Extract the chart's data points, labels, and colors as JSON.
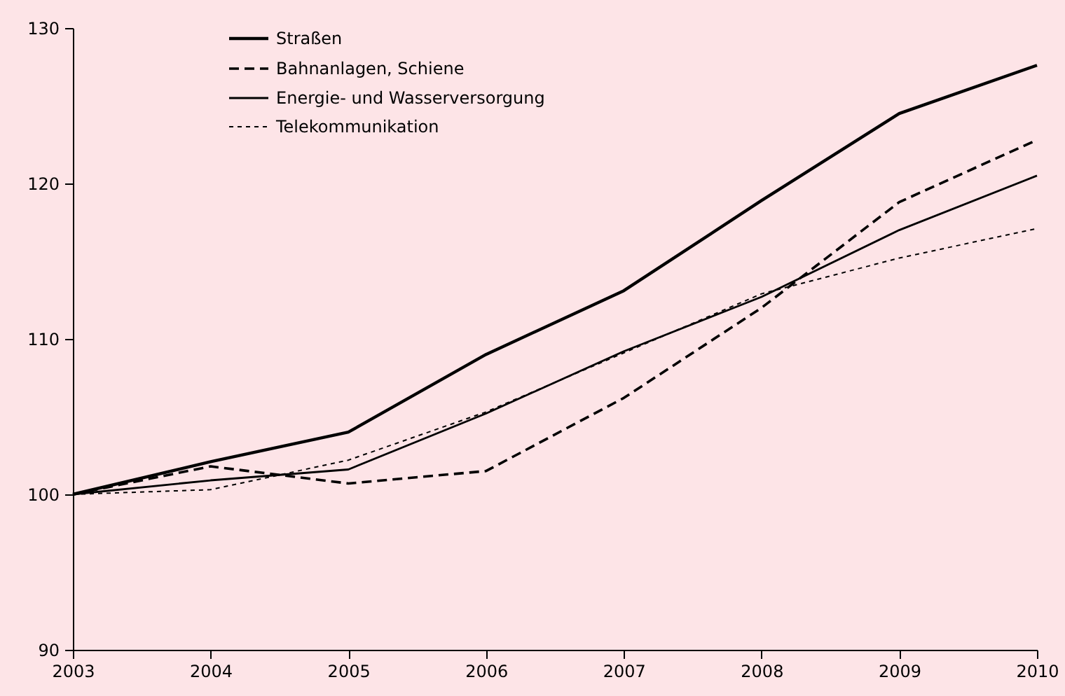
{
  "chart_data": {
    "type": "line",
    "x": [
      2003,
      2004,
      2005,
      2006,
      2007,
      2008,
      2009,
      2010
    ],
    "series": [
      {
        "name": "Straßen",
        "color": "#000000",
        "line_style": "solid",
        "values": [
          100,
          102.1,
          104.0,
          109.0,
          113.1,
          118.9,
          124.5,
          127.6
        ]
      },
      {
        "name": "Bahnanlagen, Schiene",
        "color": "#000000",
        "line_style": "dashed",
        "values": [
          100,
          101.8,
          100.7,
          101.5,
          106.2,
          112.0,
          118.8,
          122.8
        ]
      },
      {
        "name": "Energie- und Wasserversorgung",
        "color": "#000000",
        "line_style": "solid",
        "values": [
          100,
          100.9,
          101.6,
          105.2,
          109.2,
          112.7,
          117.0,
          120.5
        ]
      },
      {
        "name": "Telekommunikation",
        "color": "#000000",
        "line_style": "dotted",
        "values": [
          100,
          100.3,
          102.2,
          105.3,
          109.1,
          112.9,
          115.2,
          117.1
        ]
      }
    ],
    "xlim": [
      2003,
      2010
    ],
    "xticks": [
      2003,
      2004,
      2005,
      2006,
      2007,
      2008,
      2009,
      2010
    ],
    "ylim": [
      90,
      130
    ],
    "yticks": [
      90,
      100,
      110,
      120,
      130
    ],
    "grid": false,
    "legend": "top left",
    "marker": "none"
  }
}
